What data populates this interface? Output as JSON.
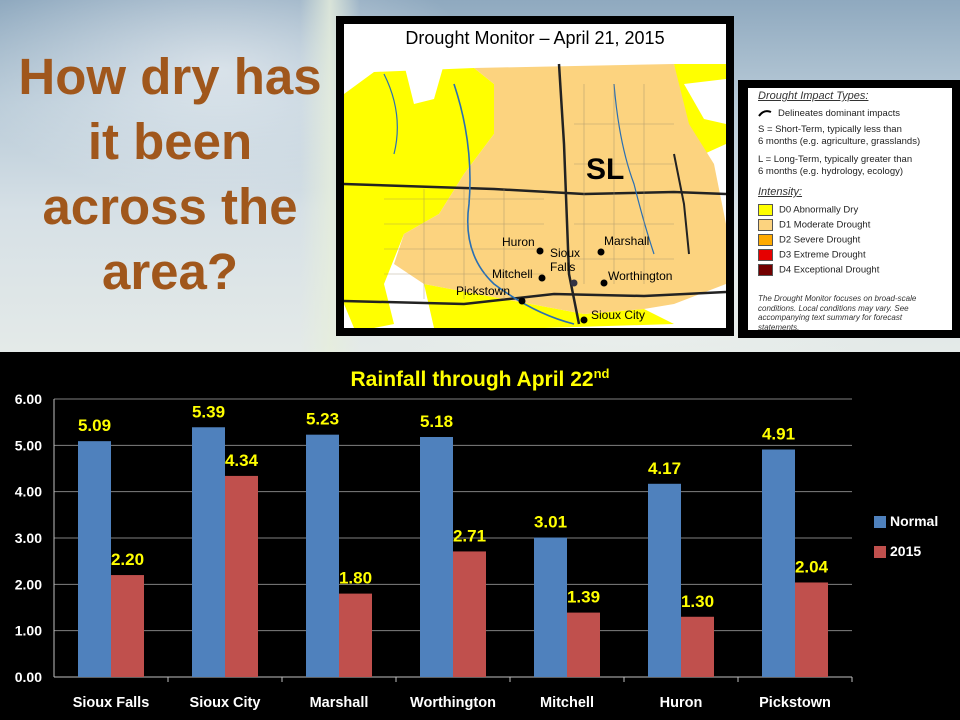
{
  "headline": [
    "How dry has",
    "it been",
    "across the",
    "area?"
  ],
  "map": {
    "title": "Drought Monitor – April 21, 2015",
    "region_label": "SL",
    "cities": [
      "Huron",
      "Marshall",
      "Sioux",
      "Falls",
      "Mitchell",
      "Worthington",
      "Pickstown",
      "Sioux City"
    ]
  },
  "legend": {
    "impact_header": "Drought Impact Types:",
    "impact_lines": [
      "Delineates dominant impacts",
      "S = Short-Term, typically less than",
      "6 months (e.g. agriculture, grasslands)",
      "L = Long-Term, typically greater than",
      "6 months (e.g. hydrology, ecology)"
    ],
    "intensity_header": "Intensity:",
    "intensity": [
      {
        "label": "D0 Abnormally Dry",
        "color": "#ffff00"
      },
      {
        "label": "D1 Moderate Drought",
        "color": "#fcd37f"
      },
      {
        "label": "D2 Severe Drought",
        "color": "#ffaa00"
      },
      {
        "label": "D3 Extreme Drought",
        "color": "#e60000"
      },
      {
        "label": "D4 Exceptional Drought",
        "color": "#730000"
      }
    ],
    "footnote": "The Drought Monitor focuses on broad-scale conditions. Local conditions may vary. See accompanying text summary for forecast statements."
  },
  "chart_title_main": "Rainfall through April 22",
  "chart_title_sup": "nd",
  "chart_data": {
    "type": "bar",
    "title": "Rainfall through April 22nd",
    "categories": [
      "Sioux Falls",
      "Sioux City",
      "Marshall",
      "Worthington",
      "Mitchell",
      "Huron",
      "Pickstown"
    ],
    "series": [
      {
        "name": "Normal",
        "color": "#4f81bd",
        "values": [
          5.09,
          5.39,
          5.23,
          5.18,
          3.01,
          4.17,
          4.91
        ]
      },
      {
        "name": "2015",
        "color": "#c0504d",
        "values": [
          2.2,
          4.34,
          1.8,
          2.71,
          1.39,
          1.3,
          2.04
        ]
      }
    ],
    "yticks": [
      "0.00",
      "1.00",
      "2.00",
      "3.00",
      "4.00",
      "5.00",
      "6.00"
    ],
    "ylim": [
      0,
      6
    ],
    "grid": true,
    "legend_position": "right",
    "label_color": "#ffff00"
  }
}
